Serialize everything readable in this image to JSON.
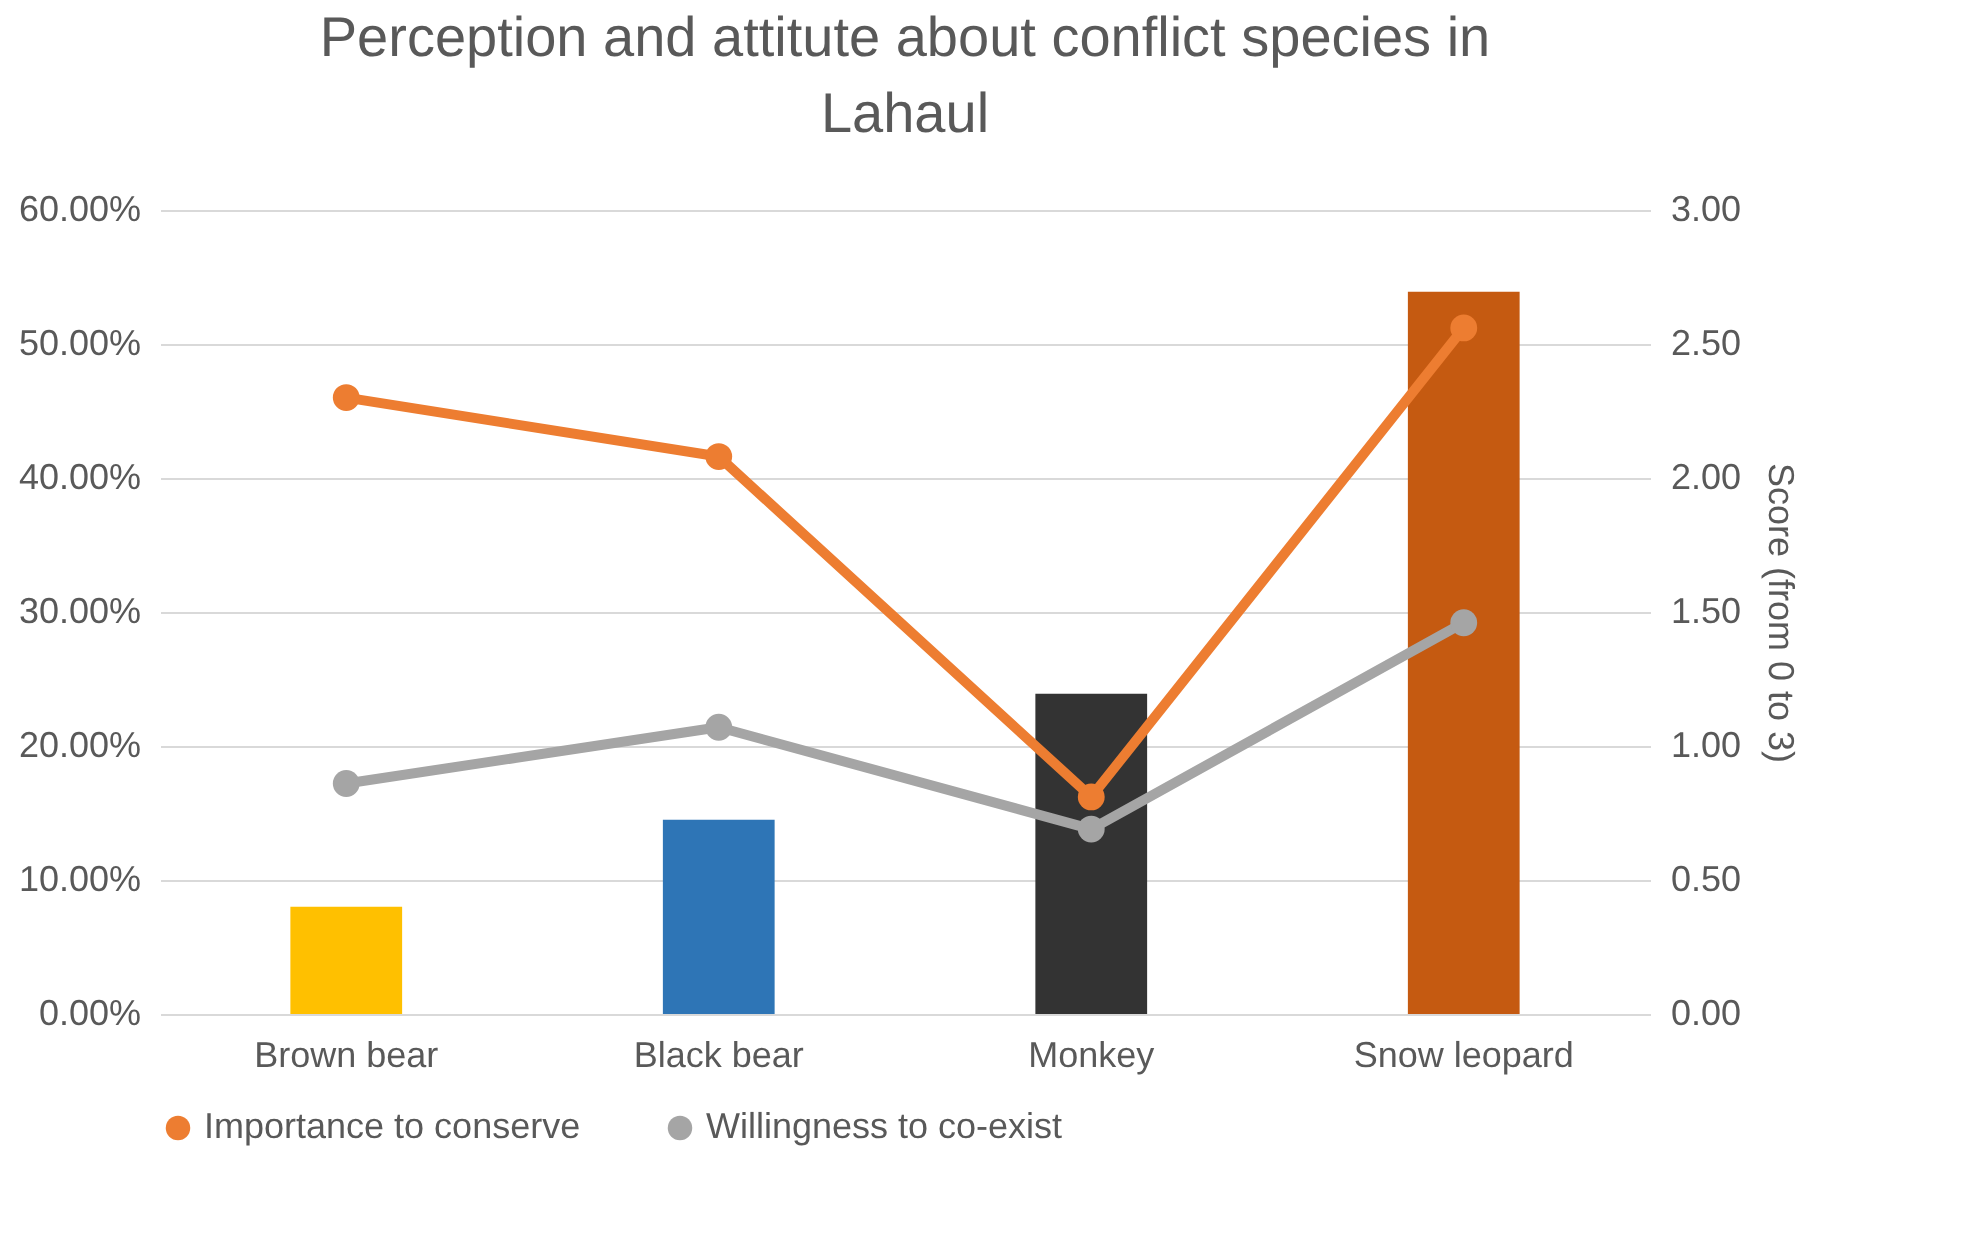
{
  "chart_data": {
    "type": "bar",
    "title": "Perception and attitute about conflict species in Lahaul",
    "y2label": "Score (from 0 to 3)",
    "categories": [
      "Brown bear",
      "Black bear",
      "Monkey",
      "Snow leopard"
    ],
    "series": [
      {
        "colors": [
          "#ffc000",
          "#2e75b6",
          "#333333",
          "#c55a11"
        ],
        "values": [
          8.0,
          14.5,
          23.9,
          53.9
        ]
      },
      {
        "type": "line",
        "name": "Importance to conserve",
        "color": "#ed7d31",
        "axis": "y2",
        "values": [
          2.3,
          2.08,
          0.81,
          2.56
        ]
      },
      {
        "type": "line",
        "name": "Willingness to co-exist",
        "color": "#a5a5a5",
        "axis": "y2",
        "values": [
          0.86,
          1.07,
          0.69,
          1.46
        ]
      }
    ],
    "ylim": [
      0,
      60
    ],
    "yticks": [
      {
        "value": 0,
        "label": "0.00%"
      },
      {
        "value": 10,
        "label": "10.00%"
      },
      {
        "value": 20,
        "label": "20.00%"
      },
      {
        "value": 30,
        "label": "30.00%"
      },
      {
        "value": 40,
        "label": "40.00%"
      },
      {
        "value": 50,
        "label": "50.00%"
      },
      {
        "value": 60,
        "label": "60.00%"
      }
    ],
    "y2lim": [
      0,
      3
    ],
    "y2ticks": [
      {
        "value": 0,
        "label": "0.00"
      },
      {
        "value": 0.5,
        "label": "0.50"
      },
      {
        "value": 1,
        "label": "1.00"
      },
      {
        "value": 1.5,
        "label": "1.50"
      },
      {
        "value": 2,
        "label": "2.00"
      },
      {
        "value": 2.5,
        "label": "2.50"
      },
      {
        "value": 3,
        "label": "3.00"
      }
    ],
    "grid": "y",
    "legend": "bottom",
    "marker": "circle",
    "line_style": "solid"
  }
}
